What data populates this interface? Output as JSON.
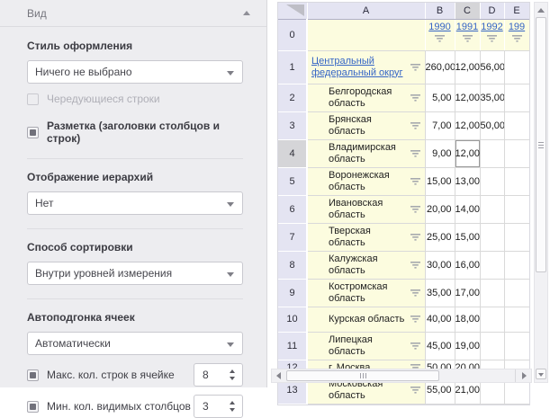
{
  "panel": {
    "title": "Вид",
    "style_label": "Стиль оформления",
    "style_value": "Ничего не выбрано",
    "alt_rows_label": "Чередующиеся строки",
    "markup_label": "Разметка (заголовки столбцов и строк)",
    "hier_label": "Отображение иерархий",
    "hier_value": "Нет",
    "sort_label": "Способ сортировки",
    "sort_value": "Внутри уровней измерения",
    "autofit_label": "Автоподгонка ячеек",
    "autofit_value": "Автоматически",
    "max_rows_label": "Макс. кол. строк в ячейке",
    "max_rows_value": "8",
    "min_cols_label": "Мин. кол. видимых столбцов",
    "min_cols_value": "3"
  },
  "grid": {
    "columns": [
      "A",
      "B",
      "C",
      "D",
      "E"
    ],
    "selected_column": "C",
    "selected_value_index": 1,
    "header_row": {
      "num": "0",
      "years": [
        "1990",
        "1991",
        "1992",
        "199"
      ]
    },
    "rows": [
      {
        "num": "1",
        "name": "Центральный федеральный округ",
        "link": true,
        "indent": false,
        "values": [
          "260,00",
          "12,00",
          "56,00",
          ""
        ]
      },
      {
        "num": "2",
        "name": "Белгородская область",
        "indent": true,
        "values": [
          "5,00",
          "12,00",
          "35,00",
          ""
        ]
      },
      {
        "num": "3",
        "name": "Брянская область",
        "indent": true,
        "values": [
          "7,00",
          "12,00",
          "50,00",
          ""
        ]
      },
      {
        "num": "4",
        "name": "Владимирская область",
        "indent": true,
        "selected": true,
        "values": [
          "9,00",
          "12,00",
          "",
          ""
        ]
      },
      {
        "num": "5",
        "name": "Воронежская область",
        "indent": true,
        "values": [
          "15,00",
          "13,00",
          "",
          ""
        ]
      },
      {
        "num": "6",
        "name": "Ивановская область",
        "indent": true,
        "values": [
          "20,00",
          "14,00",
          "",
          ""
        ]
      },
      {
        "num": "7",
        "name": "Тверская область",
        "indent": true,
        "values": [
          "25,00",
          "15,00",
          "",
          ""
        ]
      },
      {
        "num": "8",
        "name": "Калужская область",
        "indent": true,
        "values": [
          "30,00",
          "16,00",
          "",
          ""
        ]
      },
      {
        "num": "9",
        "name": "Костромская область",
        "indent": true,
        "values": [
          "35,00",
          "17,00",
          "",
          ""
        ]
      },
      {
        "num": "10",
        "name": "Курская область",
        "indent": true,
        "values": [
          "40,00",
          "18,00",
          "",
          ""
        ]
      },
      {
        "num": "11",
        "name": "Липецкая область",
        "indent": true,
        "values": [
          "45,00",
          "19,00",
          "",
          ""
        ]
      },
      {
        "num": "12",
        "name": "г. Москва",
        "indent": true,
        "single_line": true,
        "values": [
          "50,00",
          "20,00",
          "",
          ""
        ]
      },
      {
        "num": "13",
        "name": "Московская область",
        "indent": true,
        "values": [
          "55,00",
          "21,00",
          "",
          ""
        ]
      }
    ]
  },
  "colors": {
    "link": "#3565C5",
    "header_bg": "#E4E4F2",
    "header_selected_bg": "#D5D5D8",
    "cell_yellow": "#FCFCDF",
    "panel_bg": "#EDEDF0"
  }
}
